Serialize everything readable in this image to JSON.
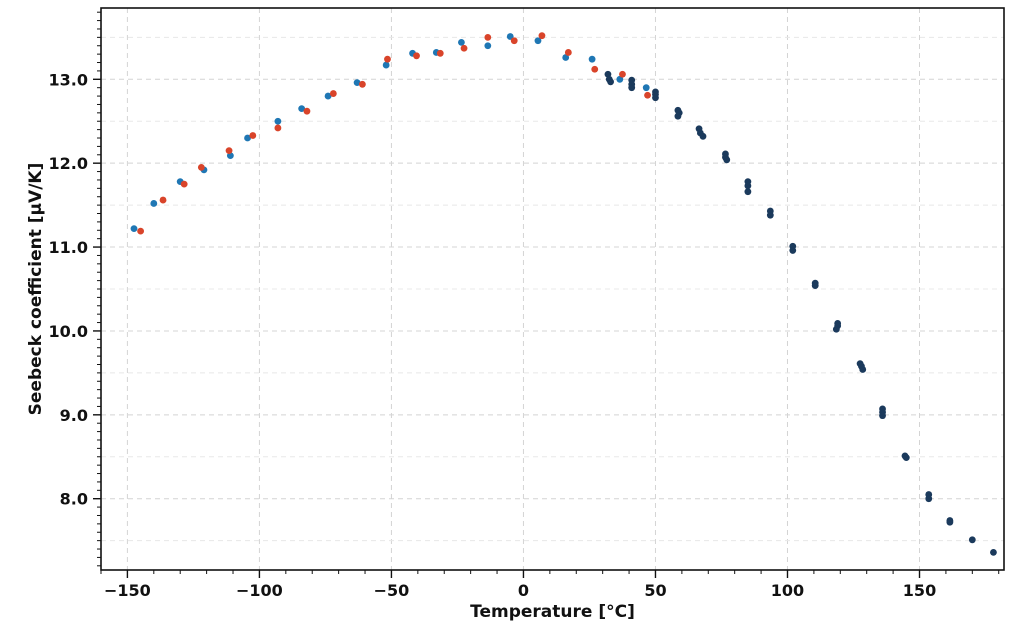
{
  "chart_data": {
    "type": "scatter",
    "title": "",
    "xlabel": "Temperature [°C]",
    "ylabel": "Seebeck coefficient [µV/K]",
    "xlim": [
      -160,
      182
    ],
    "ylim": [
      7.15,
      13.85
    ],
    "x_ticks": [
      -150,
      -100,
      -50,
      0,
      50,
      100,
      150
    ],
    "x_tick_labels": [
      "−150",
      "−100",
      "−50",
      "0",
      "50",
      "100",
      "150"
    ],
    "y_ticks": [
      8.0,
      9.0,
      10.0,
      11.0,
      12.0,
      13.0
    ],
    "y_tick_labels": [
      "8.0",
      "9.0",
      "10.0",
      "11.0",
      "12.0",
      "13.0"
    ],
    "grid": true,
    "legend": "none",
    "series": [
      {
        "color": "#1f77b4",
        "points": [
          [
            -147.5,
            11.22
          ],
          [
            -140.0,
            11.52
          ],
          [
            -130.0,
            11.78
          ],
          [
            -121.0,
            11.92
          ],
          [
            -111.0,
            12.09
          ],
          [
            -104.5,
            12.3
          ],
          [
            -93.0,
            12.5
          ],
          [
            -84.0,
            12.65
          ],
          [
            -74.0,
            12.8
          ],
          [
            -63.0,
            12.96
          ],
          [
            -52.0,
            13.17
          ],
          [
            -42.0,
            13.31
          ],
          [
            -33.0,
            13.32
          ],
          [
            -23.5,
            13.44
          ],
          [
            -13.5,
            13.4
          ],
          [
            -5.0,
            13.51
          ],
          [
            5.5,
            13.46
          ],
          [
            16.0,
            13.26
          ],
          [
            26.0,
            13.24
          ],
          [
            36.5,
            13.0
          ],
          [
            46.5,
            12.9
          ]
        ]
      },
      {
        "color": "#d9442a",
        "points": [
          [
            -145.0,
            11.19
          ],
          [
            -136.5,
            11.56
          ],
          [
            -128.5,
            11.75
          ],
          [
            -122.0,
            11.95
          ],
          [
            -111.5,
            12.15
          ],
          [
            -102.5,
            12.33
          ],
          [
            -93.0,
            12.42
          ],
          [
            -82.0,
            12.62
          ],
          [
            -72.0,
            12.83
          ],
          [
            -61.0,
            12.94
          ],
          [
            -51.5,
            13.24
          ],
          [
            -40.5,
            13.28
          ],
          [
            -31.5,
            13.31
          ],
          [
            -22.5,
            13.37
          ],
          [
            -13.5,
            13.5
          ],
          [
            -3.5,
            13.46
          ],
          [
            7.0,
            13.52
          ],
          [
            17.0,
            13.32
          ],
          [
            27.0,
            13.12
          ],
          [
            37.5,
            13.06
          ],
          [
            47.0,
            12.81
          ]
        ]
      },
      {
        "color": "#1b3a5c",
        "points": [
          [
            32.0,
            13.06
          ],
          [
            32.5,
            13.0
          ],
          [
            33.0,
            12.97
          ],
          [
            41.0,
            12.99
          ],
          [
            41.0,
            12.94
          ],
          [
            41.0,
            12.9
          ],
          [
            50.0,
            12.85
          ],
          [
            50.0,
            12.82
          ],
          [
            50.0,
            12.78
          ],
          [
            58.5,
            12.63
          ],
          [
            59.0,
            12.6
          ],
          [
            58.5,
            12.56
          ],
          [
            66.5,
            12.41
          ],
          [
            67.0,
            12.36
          ],
          [
            68.0,
            12.32
          ],
          [
            76.5,
            12.11
          ],
          [
            76.5,
            12.07
          ],
          [
            77.0,
            12.04
          ],
          [
            85.0,
            11.78
          ],
          [
            85.0,
            11.73
          ],
          [
            85.0,
            11.66
          ],
          [
            93.5,
            11.43
          ],
          [
            93.5,
            11.38
          ],
          [
            102.0,
            11.01
          ],
          [
            102.0,
            10.96
          ],
          [
            110.5,
            10.57
          ],
          [
            110.5,
            10.54
          ],
          [
            119.0,
            10.09
          ],
          [
            119.0,
            10.06
          ],
          [
            118.5,
            10.02
          ],
          [
            127.5,
            9.61
          ],
          [
            128.0,
            9.58
          ],
          [
            128.5,
            9.54
          ],
          [
            136.0,
            9.07
          ],
          [
            136.0,
            9.03
          ],
          [
            136.0,
            8.99
          ],
          [
            144.5,
            8.51
          ],
          [
            145.0,
            8.49
          ],
          [
            153.5,
            8.05
          ],
          [
            153.5,
            8.0
          ],
          [
            161.5,
            7.74
          ],
          [
            161.5,
            7.72
          ],
          [
            170.0,
            7.51
          ],
          [
            178.0,
            7.36
          ]
        ]
      }
    ]
  }
}
